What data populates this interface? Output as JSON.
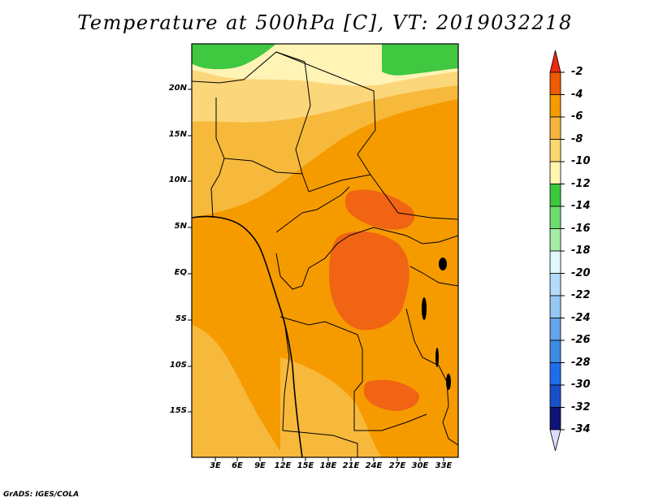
{
  "title": "Temperature at 500hPa [C], VT: 2019032218",
  "footer": "GrADS: IGES/COLA",
  "lat_labels": [
    "20N",
    "15N",
    "10N",
    "5N",
    "EQ",
    "5S",
    "10S",
    "15S"
  ],
  "lon_labels": [
    "3E",
    "6E",
    "9E",
    "12E",
    "15E",
    "18E",
    "21E",
    "24E",
    "27E",
    "30E",
    "33E"
  ],
  "colorbar": {
    "labels": [
      "-2",
      "-4",
      "-6",
      "-8",
      "-10",
      "-12",
      "-14",
      "-16",
      "-18",
      "-20",
      "-22",
      "-24",
      "-26",
      "-28",
      "-30",
      "-32",
      "-34"
    ],
    "colors": [
      "#f02810",
      "#f05a00",
      "#f59b00",
      "#f5b340",
      "#fbd870",
      "#fff4b0",
      "#3cc83c",
      "#6edc6e",
      "#a6eca6",
      "#e1f9fd",
      "#b4dcfa",
      "#96c8f5",
      "#64a5eb",
      "#3c8ce1",
      "#1e6eeb",
      "#1950c8",
      "#0f1478",
      "#dcdcff"
    ]
  },
  "field_colors": {
    "warm_core": "#f06414",
    "minus_4": "#f59b00",
    "minus_6": "#f7b93c",
    "minus_8": "#fcd67a",
    "minus_10": "#fff3b6",
    "minus_12": "#40c840"
  }
}
